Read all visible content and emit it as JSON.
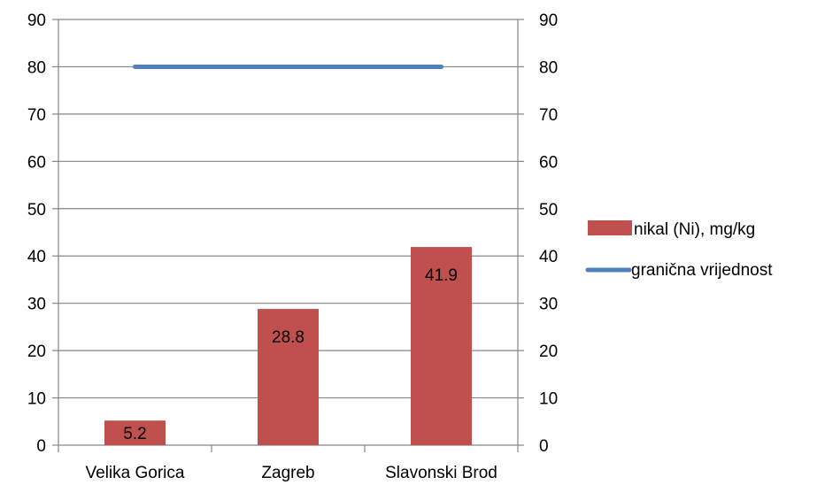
{
  "chart_data": {
    "type": "bar",
    "categories": [
      "Velika Gorica",
      "Zagreb",
      "Slavonski Brod"
    ],
    "series": [
      {
        "name": "nikal (Ni), mg/kg",
        "type": "bar",
        "values": [
          5.2,
          28.8,
          41.9
        ],
        "data_labels": [
          "5.2",
          "28.8",
          "41.9"
        ],
        "color": "#c0504d"
      },
      {
        "name": "granična vrijednost",
        "type": "line",
        "values": [
          80,
          80,
          80
        ],
        "color": "#4f81bd"
      }
    ],
    "ylim": [
      0,
      90
    ],
    "yticks": [
      0,
      10,
      20,
      30,
      40,
      50,
      60,
      70,
      80,
      90
    ],
    "secondary_yticks": [
      0,
      10,
      20,
      30,
      40,
      50,
      60,
      70,
      80,
      90
    ],
    "grid": true,
    "legend_position": "right"
  }
}
